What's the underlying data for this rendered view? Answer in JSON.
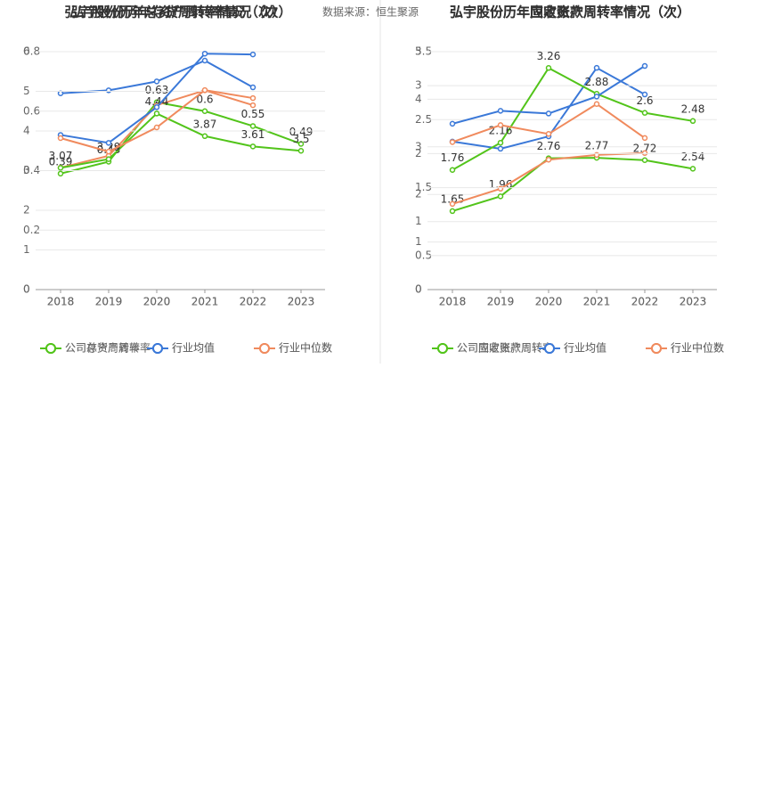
{
  "chart_data": [
    {
      "type": "line",
      "title": "弘宇股份历年总资产周转率情况（次）",
      "source": "数据来源：恒生聚源",
      "categories": [
        "2018",
        "2019",
        "2020",
        "2021",
        "2022",
        "2023"
      ],
      "series": [
        {
          "name": "公司总资产周转率",
          "color": "#52c41a",
          "values": [
            0.39,
            0.43,
            0.63,
            0.6,
            0.55,
            0.49
          ],
          "labels": true
        },
        {
          "name": "行业均值",
          "color": "#3a78d8",
          "values": [
            0.66,
            0.67,
            0.7,
            0.77,
            0.68,
            null
          ]
        },
        {
          "name": "行业中位数",
          "color": "#f08a5d",
          "values": [
            0.41,
            0.45,
            0.62,
            0.67,
            0.62,
            null
          ]
        }
      ],
      "ylim": [
        0,
        0.8
      ],
      "yticks": [
        0,
        0.2,
        0.4,
        0.6,
        0.8
      ],
      "grid": true
    },
    {
      "type": "line",
      "title": "弘宇股份历年存货周转率情况（次）",
      "categories": [
        "2018",
        "2019",
        "2020",
        "2021",
        "2022",
        "2023"
      ],
      "series": [
        {
          "name": "公司存货周转率",
          "color": "#52c41a",
          "values": [
            3.07,
            3.29,
            4.44,
            3.87,
            3.61,
            3.5
          ],
          "labels": true
        },
        {
          "name": "行业均值",
          "color": "#3a78d8",
          "values": [
            3.9,
            3.7,
            4.6,
            5.95,
            5.93,
            null
          ]
        },
        {
          "name": "行业中位数",
          "color": "#f08a5d",
          "values": [
            3.82,
            3.48,
            4.09,
            5.03,
            4.83,
            null
          ]
        }
      ],
      "ylim": [
        0,
        6
      ],
      "yticks": [
        0,
        1,
        2,
        3,
        4,
        5,
        6
      ],
      "grid": true
    },
    {
      "type": "line",
      "title": "弘宇股份历年应收账款周转率情况（次）",
      "categories": [
        "2018",
        "2019",
        "2020",
        "2021",
        "2022",
        "2023"
      ],
      "series": [
        {
          "name": "公司应收账款周转率",
          "color": "#52c41a",
          "values": [
            1.65,
            1.96,
            2.76,
            2.77,
            2.72,
            2.54
          ],
          "labels": true
        },
        {
          "name": "行业均值",
          "color": "#3a78d8",
          "values": [
            3.11,
            2.96,
            3.22,
            4.66,
            4.1,
            null
          ]
        },
        {
          "name": "行业中位数",
          "color": "#f08a5d",
          "values": [
            1.8,
            2.12,
            2.73,
            2.83,
            2.87,
            null
          ]
        }
      ],
      "ylim": [
        0,
        5
      ],
      "yticks": [
        0,
        1,
        2,
        3,
        4,
        5
      ],
      "grid": true
    },
    {
      "type": "line",
      "title": "弘宇股份历年固定资产周转率情况（次）",
      "categories": [
        "2018",
        "2019",
        "2020",
        "2021",
        "2022",
        "2023"
      ],
      "series": [
        {
          "name": "公司固定资产周转率",
          "color": "#52c41a",
          "values": [
            1.76,
            2.16,
            3.26,
            2.88,
            2.6,
            2.48
          ],
          "labels": true
        },
        {
          "name": "行业均值",
          "color": "#3a78d8",
          "values": [
            2.44,
            2.63,
            2.59,
            2.84,
            3.29,
            null
          ]
        },
        {
          "name": "行业中位数",
          "color": "#f08a5d",
          "values": [
            2.17,
            2.42,
            2.29,
            2.73,
            2.23,
            null
          ]
        }
      ],
      "ylim": [
        0,
        3.5
      ],
      "yticks": [
        0,
        0.5,
        1,
        1.5,
        2,
        2.5,
        3,
        3.5
      ],
      "grid": true
    }
  ]
}
